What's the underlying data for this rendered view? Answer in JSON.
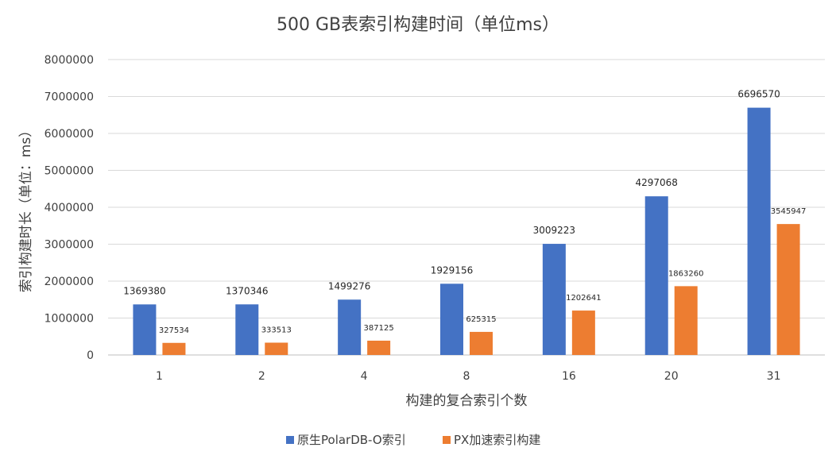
{
  "chart_data": {
    "type": "bar",
    "title": "500 GB表索引构建时间（单位ms）",
    "xlabel": "构建的复合索引个数",
    "ylabel": "索引构建时长（单位：ms）",
    "categories": [
      "1",
      "2",
      "4",
      "8",
      "16",
      "20",
      "31"
    ],
    "ylim": [
      0,
      8000000
    ],
    "yticks": [
      0,
      1000000,
      2000000,
      3000000,
      4000000,
      5000000,
      6000000,
      7000000,
      8000000
    ],
    "grid": true,
    "legend_position": "bottom",
    "series": [
      {
        "name": "原生PolarDB-O索引",
        "color": "#4472c4",
        "values": [
          1369380,
          1370346,
          1499276,
          1929156,
          3009223,
          4297068,
          6696570
        ]
      },
      {
        "name": "PX加速索引构建",
        "color": "#ed7d31",
        "values": [
          327534,
          333513,
          387125,
          625315,
          1202641,
          1863260,
          3545947
        ]
      }
    ]
  }
}
